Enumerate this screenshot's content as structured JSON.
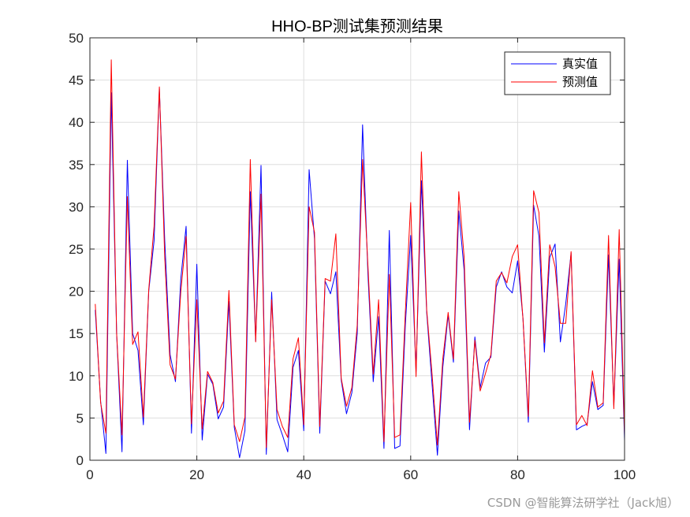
{
  "chart_data": {
    "type": "line",
    "title": "HHO-BP测试集预测结果",
    "xlabel": "",
    "ylabel": "",
    "xlim": [
      0,
      100
    ],
    "ylim": [
      0,
      50
    ],
    "xticks": [
      0,
      20,
      40,
      60,
      80,
      100
    ],
    "yticks": [
      0,
      5,
      10,
      15,
      20,
      25,
      30,
      35,
      40,
      45,
      50
    ],
    "grid": true,
    "legend_position": "top-right",
    "x": [
      1,
      2,
      3,
      4,
      5,
      6,
      7,
      8,
      9,
      10,
      11,
      12,
      13,
      14,
      15,
      16,
      17,
      18,
      19,
      20,
      21,
      22,
      23,
      24,
      25,
      26,
      27,
      28,
      29,
      30,
      31,
      32,
      33,
      34,
      35,
      36,
      37,
      38,
      39,
      40,
      41,
      42,
      43,
      44,
      45,
      46,
      47,
      48,
      49,
      50,
      51,
      52,
      53,
      54,
      55,
      56,
      57,
      58,
      59,
      60,
      61,
      62,
      63,
      64,
      65,
      66,
      67,
      68,
      69,
      70,
      71,
      72,
      73,
      74,
      75,
      76,
      77,
      78,
      79,
      80,
      81,
      82,
      83,
      84,
      85,
      86,
      87,
      88,
      89,
      90,
      91,
      92,
      93,
      94,
      95,
      96,
      97,
      98,
      99,
      100
    ],
    "series": [
      {
        "name": "真实值",
        "color": "#0000ff",
        "values": [
          17.8,
          7.0,
          0.8,
          43.5,
          15.0,
          1.0,
          35.5,
          15.0,
          13.0,
          4.2,
          20.0,
          26.0,
          44.0,
          26.0,
          12.5,
          9.3,
          21.5,
          27.7,
          3.2,
          23.2,
          2.4,
          10.2,
          9.0,
          4.9,
          6.3,
          18.8,
          3.9,
          0.3,
          3.5,
          31.8,
          14.1,
          34.9,
          0.7,
          19.9,
          4.8,
          3.0,
          1.0,
          11.0,
          13.0,
          3.5,
          34.4,
          26.2,
          3.2,
          21.2,
          19.7,
          22.3,
          9.5,
          5.5,
          8.0,
          15.0,
          39.7,
          22.0,
          9.3,
          17.0,
          1.4,
          27.2,
          1.4,
          1.7,
          16.0,
          26.6,
          10.5,
          33.1,
          17.5,
          9.0,
          0.6,
          11.0,
          17.2,
          11.6,
          29.5,
          22.5,
          3.6,
          14.6,
          8.6,
          11.5,
          12.2,
          20.5,
          22.3,
          20.5,
          19.8,
          23.6,
          16.8,
          4.5,
          30.2,
          26.5,
          12.8,
          24.0,
          25.6,
          14.0,
          18.5,
          24.5,
          3.6,
          4.0,
          4.3,
          9.3,
          6.0,
          6.5,
          24.3,
          6.5,
          23.8,
          2.3
        ]
      },
      {
        "name": "预测值",
        "color": "#ff0000",
        "values": [
          18.5,
          6.8,
          3.2,
          47.4,
          15.0,
          3.0,
          31.2,
          13.7,
          15.2,
          5.1,
          20.2,
          27.7,
          44.2,
          24.0,
          11.3,
          9.6,
          20.0,
          26.5,
          4.3,
          19.0,
          3.7,
          10.5,
          9.2,
          5.6,
          7.0,
          20.1,
          4.2,
          2.2,
          5.1,
          35.6,
          14.0,
          31.5,
          1.5,
          19.0,
          6.0,
          4.0,
          2.7,
          12.0,
          14.5,
          4.2,
          30.0,
          27.0,
          4.0,
          21.5,
          21.2,
          26.8,
          9.7,
          6.4,
          8.6,
          16.0,
          35.6,
          23.0,
          10.2,
          19.0,
          2.2,
          22.0,
          2.7,
          3.0,
          17.5,
          30.5,
          9.9,
          36.5,
          17.8,
          10.2,
          1.8,
          12.0,
          17.5,
          12.0,
          31.8,
          24.0,
          4.5,
          14.2,
          8.2,
          10.3,
          12.5,
          21.2,
          22.2,
          21.0,
          24.1,
          25.5,
          16.7,
          5.2,
          31.9,
          29.3,
          13.9,
          25.5,
          22.9,
          16.2,
          16.2,
          24.7,
          4.2,
          5.3,
          4.1,
          10.6,
          6.3,
          6.8,
          26.6,
          6.1,
          27.3,
          3.0
        ]
      }
    ]
  },
  "watermark": "CSDN @智能算法研学社（Jack旭）"
}
